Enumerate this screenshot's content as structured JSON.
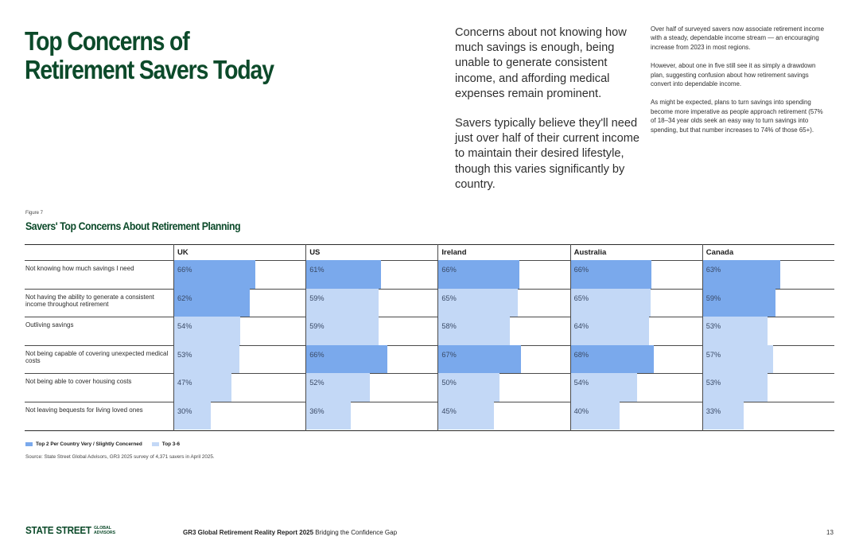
{
  "page": {
    "title_lines": [
      "Top Concerns of",
      "Retirement Savers Today"
    ],
    "intro_paragraphs": [
      "Concerns about not knowing how much savings is enough, being unable to generate consistent income, and affording medical expenses remain prominent.",
      "Savers typically believe they'll need just over half of their current income to maintain their desired lifestyle, though this varies significantly by country."
    ],
    "side_paragraphs": [
      "Over half of surveyed savers now associate retirement income with a steady, dependable income stream — an encouraging increase from 2023 in most regions.",
      "However, about one in five still see it as simply a drawdown plan, suggesting confusion about how retirement savings convert into dependable income.",
      "As might be expected, plans to turn savings into spending become more imperative as people approach retirement (57% of 18–34 year olds seek an easy way to turn savings into spending, but that number increases to 74% of those 65+)."
    ]
  },
  "figure": {
    "label": "Figure 7",
    "title": "Savers' Top Concerns About Retirement Planning",
    "legend": {
      "top": "Top 2 Per Country Very / Slightly Concerned",
      "low": "Top 3-6"
    },
    "source": "Source: State Street Global Advisors, GR3 2025 survey of 4,371 savers in April 2025."
  },
  "chart_data": {
    "type": "table",
    "title": "Savers' Top Concerns About Retirement Planning",
    "unit": "%",
    "columns": [
      "UK",
      "US",
      "Ireland",
      "Australia",
      "Canada"
    ],
    "rows": [
      {
        "label": "Not knowing how much savings I need",
        "values": [
          66,
          61,
          66,
          66,
          63
        ],
        "top2": [
          true,
          true,
          true,
          true,
          true
        ]
      },
      {
        "label": "Not having the ability to generate a consistent income throughout retirement",
        "values": [
          62,
          59,
          65,
          65,
          59
        ],
        "top2": [
          true,
          false,
          false,
          false,
          true
        ]
      },
      {
        "label": "Outliving savings",
        "values": [
          54,
          59,
          58,
          64,
          53
        ],
        "top2": [
          false,
          false,
          false,
          false,
          false
        ]
      },
      {
        "label": "Not being capable of covering unexpected medical costs",
        "values": [
          53,
          66,
          67,
          68,
          57
        ],
        "top2": [
          false,
          true,
          true,
          true,
          false
        ]
      },
      {
        "label": "Not being able to cover housing costs",
        "values": [
          47,
          52,
          50,
          54,
          53
        ],
        "top2": [
          false,
          false,
          false,
          false,
          false
        ]
      },
      {
        "label": "Not leaving bequests for living loved ones",
        "values": [
          30,
          36,
          45,
          40,
          33
        ],
        "top2": [
          false,
          false,
          false,
          false,
          false
        ]
      }
    ],
    "colors": {
      "top": "#7aa9ec",
      "low": "#c3d8f6"
    }
  },
  "footer": {
    "brand": "STATE STREET",
    "brand_sub_1": "GLOBAL",
    "brand_sub_2": "ADVISORS",
    "report": "GR3 Global Retirement Reality Report 2025",
    "subtitle": "Bridging the Confidence Gap",
    "page_number": "13"
  }
}
